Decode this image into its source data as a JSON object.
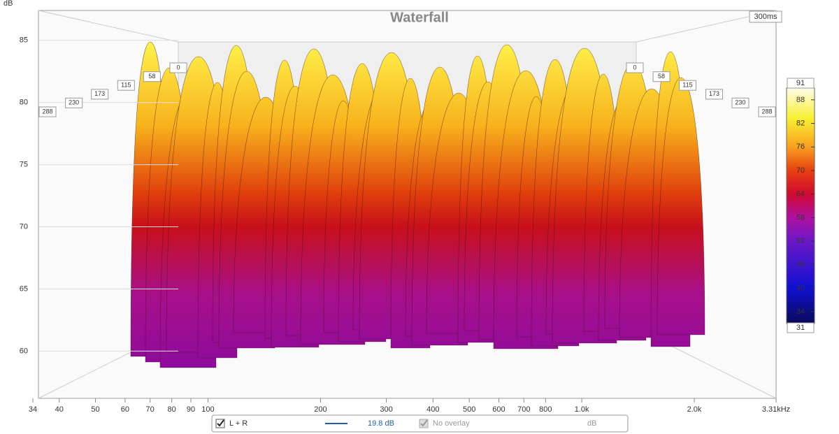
{
  "chart_data": {
    "type": "waterfall",
    "title": "Waterfall",
    "y_label": "dB",
    "ylim": [
      56.2,
      87.4
    ],
    "yticks": [
      60,
      65,
      70,
      75,
      80,
      85
    ],
    "xlim": [
      34,
      3310
    ],
    "log_x": true,
    "xticks": [
      34,
      40,
      50,
      60,
      70,
      80,
      90,
      100,
      200,
      300,
      400,
      500,
      600,
      700,
      800,
      {
        "value": 1000,
        "label": "1.0k"
      },
      {
        "value": 2000,
        "label": "2.0k"
      },
      {
        "value": 3310,
        "label": "3.31kHz"
      }
    ],
    "time_label": "300ms",
    "time_ticks": [
      0,
      58,
      115,
      173,
      230,
      288
    ],
    "colorbar_lim": [
      31,
      91
    ],
    "colorbar_ticks": [
      31,
      34,
      40,
      46,
      52,
      58,
      64,
      70,
      76,
      82,
      88,
      91
    ],
    "legend": {
      "series_name": "L + R",
      "series_color": "#1f5fa8",
      "series_value": "19.8 dB",
      "overlay": "No overlay",
      "unit": "dB"
    }
  }
}
